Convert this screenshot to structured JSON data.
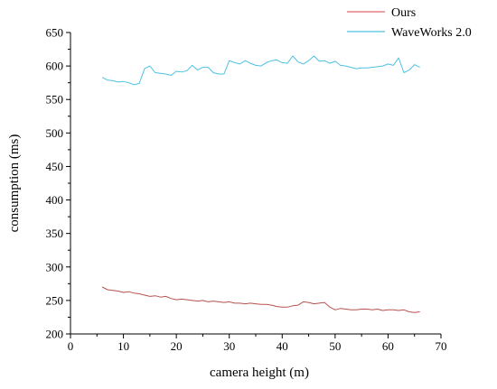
{
  "chart_data": {
    "type": "line",
    "title": "",
    "xlabel": "camera height (m)",
    "ylabel": "consumption (ms)",
    "xlim": [
      0,
      70
    ],
    "ylim": [
      200,
      650
    ],
    "xticks": [
      "0",
      "10",
      "20",
      "30",
      "40",
      "50",
      "60",
      "70"
    ],
    "yticks": [
      "200",
      "250",
      "300",
      "350",
      "400",
      "450",
      "500",
      "550",
      "600",
      "650"
    ],
    "grid": false,
    "legend": "top-right",
    "series": [
      {
        "name": "Ours",
        "color": "#b5534f",
        "legend_color": "#e0686c",
        "x": [
          6,
          7,
          8,
          9,
          10,
          11,
          12,
          13,
          14,
          15,
          16,
          17,
          18,
          19,
          20,
          21,
          22,
          23,
          24,
          25,
          26,
          27,
          28,
          29,
          30,
          31,
          32,
          33,
          34,
          35,
          36,
          37,
          38,
          39,
          40,
          41,
          42,
          43,
          44,
          45,
          46,
          47,
          48,
          49,
          50,
          51,
          52,
          53,
          54,
          55,
          56,
          57,
          58,
          59,
          60,
          61,
          62,
          63,
          64,
          65,
          66
        ],
        "y": [
          270,
          266,
          265,
          264,
          262,
          263,
          261,
          260,
          258,
          256,
          257,
          255,
          256,
          253,
          251,
          252,
          251,
          250,
          249,
          250,
          248,
          249,
          248,
          247,
          248,
          246,
          246,
          245,
          246,
          245,
          244,
          244,
          243,
          241,
          240,
          240,
          242,
          243,
          248,
          247,
          245,
          246,
          247,
          240,
          236,
          238,
          237,
          236,
          236,
          237,
          237,
          236,
          237,
          235,
          236,
          236,
          235,
          236,
          233,
          232,
          233
        ]
      },
      {
        "name": "WaveWorks 2.0",
        "color": "#4fc1e3",
        "legend_color": "#4fc1e3",
        "x": [
          6,
          7,
          8,
          9,
          10,
          11,
          12,
          13,
          14,
          15,
          16,
          17,
          18,
          19,
          20,
          21,
          22,
          23,
          24,
          25,
          26,
          27,
          28,
          29,
          30,
          31,
          32,
          33,
          34,
          35,
          36,
          37,
          38,
          39,
          40,
          41,
          42,
          43,
          44,
          45,
          46,
          47,
          48,
          49,
          50,
          51,
          52,
          53,
          54,
          55,
          56,
          57,
          58,
          59,
          60,
          61,
          62,
          63,
          64,
          65,
          66
        ],
        "y": [
          583,
          579,
          578,
          576,
          577,
          575,
          572,
          574,
          596,
          600,
          590,
          589,
          588,
          586,
          592,
          591,
          593,
          601,
          594,
          598,
          598,
          590,
          588,
          588,
          608,
          605,
          603,
          608,
          604,
          601,
          600,
          605,
          608,
          609,
          605,
          604,
          615,
          606,
          603,
          608,
          615,
          607,
          608,
          604,
          607,
          601,
          600,
          598,
          596,
          597,
          597,
          598,
          599,
          600,
          603,
          601,
          612,
          590,
          594,
          602,
          598
        ]
      }
    ]
  }
}
